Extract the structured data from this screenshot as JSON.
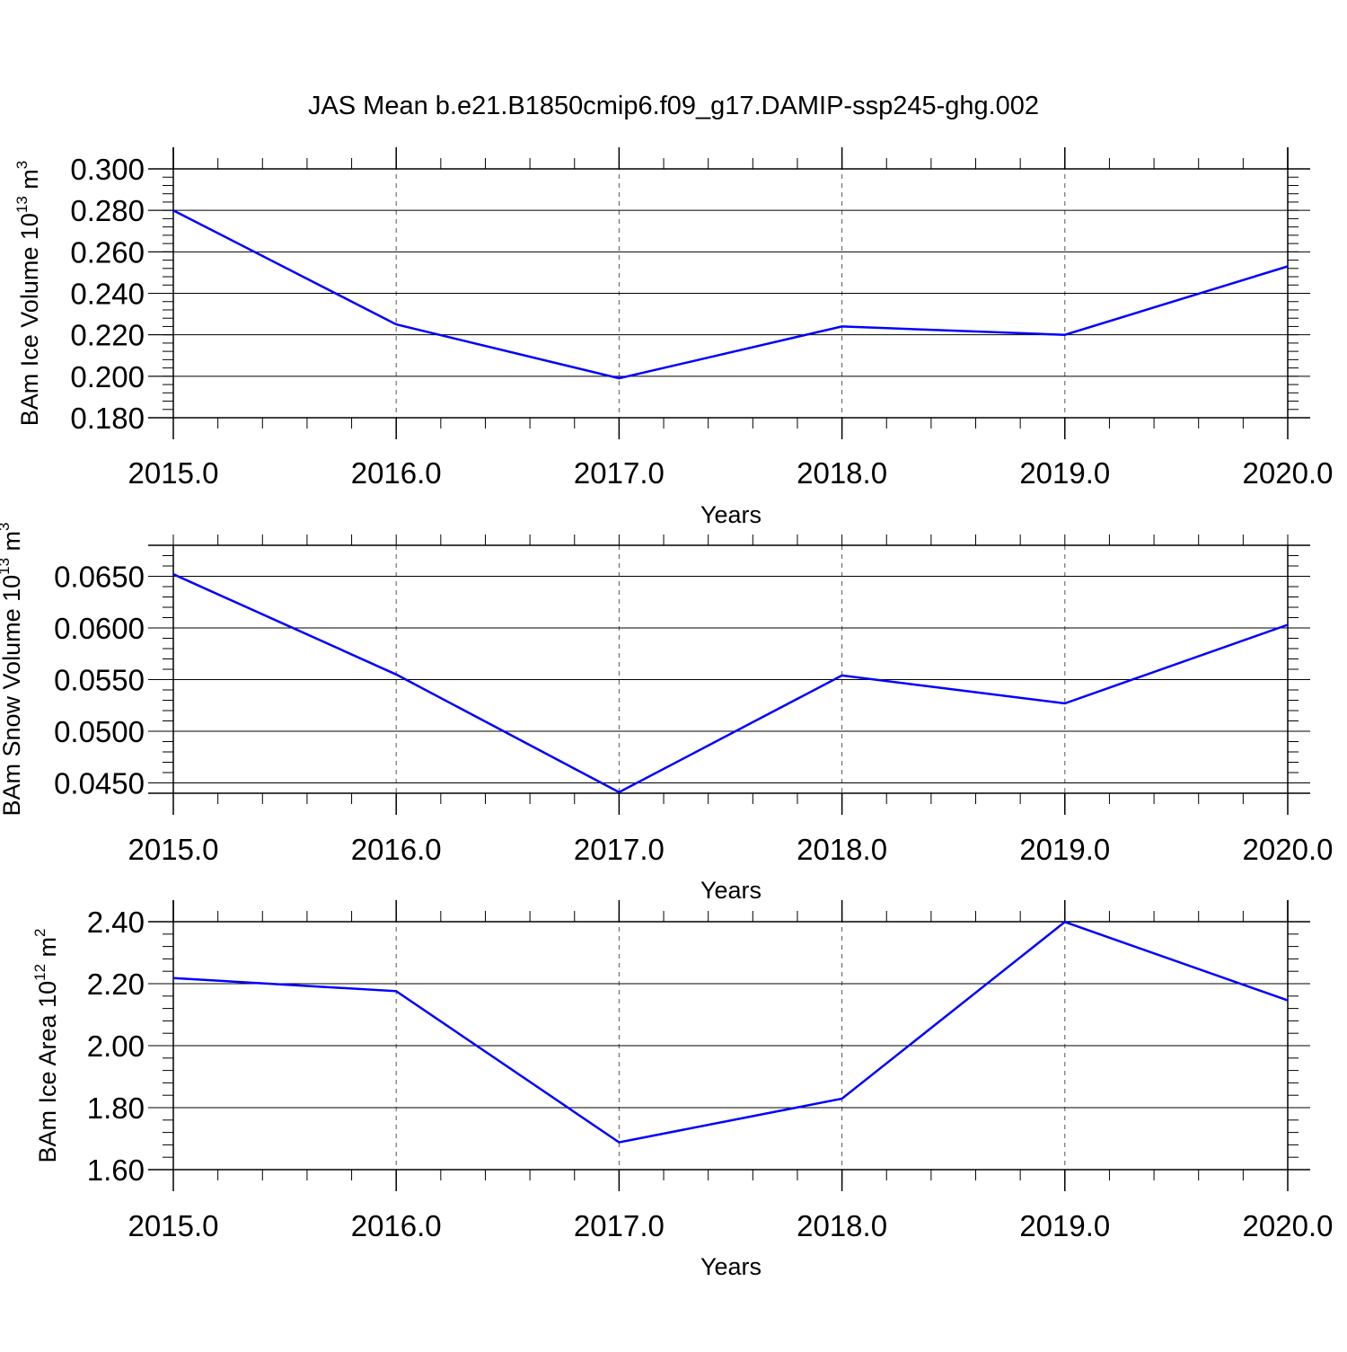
{
  "title": "JAS Mean b.e21.B1850cmip6.f09_g17.DAMIP-ssp245-ghg.002",
  "colors": {
    "line": "#0000ff",
    "axis": "#000000",
    "grid": "#555555"
  },
  "chart_data": [
    {
      "type": "line",
      "x": [
        2015,
        2016,
        2017,
        2018,
        2019,
        2020
      ],
      "series": [
        {
          "values": [
            0.28,
            0.225,
            0.199,
            0.224,
            0.22,
            0.253
          ]
        }
      ],
      "xlabel": "Years",
      "ylabel": {
        "main": "BAm Ice Volume 10",
        "exp": "13",
        "unit": " m",
        "unit_exp": "3"
      },
      "xlim": [
        2015,
        2020
      ],
      "ylim": [
        0.18,
        0.3
      ],
      "yticks": [
        "0.180",
        "0.200",
        "0.220",
        "0.240",
        "0.260",
        "0.280",
        "0.300"
      ],
      "xticks": [
        "2015.0",
        "2016.0",
        "2017.0",
        "2018.0",
        "2019.0",
        "2020.0"
      ],
      "grid": "vertical-dashed"
    },
    {
      "type": "line",
      "x": [
        2015,
        2016,
        2017,
        2018,
        2019,
        2020
      ],
      "series": [
        {
          "values": [
            0.0652,
            0.0555,
            0.0441,
            0.0554,
            0.0527,
            0.0603
          ]
        }
      ],
      "xlabel": "Years",
      "ylabel": {
        "main": "BAm Snow Volume 10",
        "exp": "13",
        "unit": " m",
        "unit_exp": "3"
      },
      "xlim": [
        2015,
        2020
      ],
      "ylim": [
        0.044,
        0.068
      ],
      "yticks": [
        "0.0450",
        "0.0500",
        "0.0550",
        "0.0600",
        "0.0650"
      ],
      "xticks": [
        "2015.0",
        "2016.0",
        "2017.0",
        "2018.0",
        "2019.0",
        "2020.0"
      ],
      "grid": "vertical-dashed"
    },
    {
      "type": "line",
      "x": [
        2015,
        2016,
        2017,
        2018,
        2019,
        2020
      ],
      "series": [
        {
          "values": [
            2.218,
            2.176,
            1.688,
            1.829,
            2.399,
            2.146
          ]
        }
      ],
      "xlabel": "Years",
      "ylabel": {
        "main": "BAm Ice Area 10",
        "exp": "12",
        "unit": " m",
        "unit_exp": "2"
      },
      "xlim": [
        2015,
        2020
      ],
      "ylim": [
        1.6,
        2.4
      ],
      "yticks": [
        "1.60",
        "1.80",
        "2.00",
        "2.20",
        "2.40"
      ],
      "xticks": [
        "2015.0",
        "2016.0",
        "2017.0",
        "2018.0",
        "2019.0",
        "2020.0"
      ],
      "grid": "vertical-dashed"
    }
  ]
}
